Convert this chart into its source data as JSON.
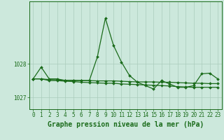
{
  "title": "Graphe pression niveau de la mer (hPa)",
  "background_color": "#cce8dc",
  "line_color": "#1a6b1a",
  "grid_color": "#aaccbb",
  "x_ticks": [
    0,
    1,
    2,
    3,
    4,
    5,
    6,
    7,
    8,
    9,
    10,
    11,
    12,
    13,
    14,
    15,
    16,
    17,
    18,
    19,
    20,
    21,
    22,
    23
  ],
  "ylim": [
    1026.65,
    1029.85
  ],
  "yticks": [
    1027,
    1028
  ],
  "series1": [
    1027.55,
    1027.9,
    1027.55,
    1027.55,
    1027.5,
    1027.5,
    1027.5,
    1027.5,
    1028.2,
    1029.35,
    1028.55,
    1028.05,
    1027.65,
    1027.45,
    1027.35,
    1027.25,
    1027.5,
    1027.4,
    1027.3,
    1027.3,
    1027.35,
    1027.7,
    1027.72,
    1027.55
  ],
  "series2": [
    1027.55,
    1027.55,
    1027.5,
    1027.5,
    1027.48,
    1027.47,
    1027.45,
    1027.44,
    1027.43,
    1027.42,
    1027.42,
    1027.4,
    1027.39,
    1027.38,
    1027.37,
    1027.36,
    1027.35,
    1027.34,
    1027.32,
    1027.31,
    1027.3,
    1027.3,
    1027.3,
    1027.3
  ],
  "series3": [
    1027.55,
    1027.55,
    1027.53,
    1027.52,
    1027.51,
    1027.51,
    1027.5,
    1027.5,
    1027.49,
    1027.49,
    1027.49,
    1027.48,
    1027.47,
    1027.46,
    1027.46,
    1027.46,
    1027.45,
    1027.45,
    1027.44,
    1027.43,
    1027.42,
    1027.42,
    1027.41,
    1027.41
  ],
  "marker_size": 2.0,
  "line_width": 0.9,
  "title_fontsize": 7.0,
  "tick_fontsize": 5.5
}
